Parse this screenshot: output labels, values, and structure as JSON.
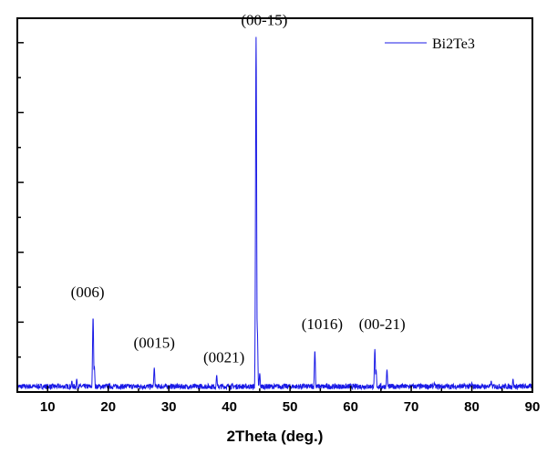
{
  "chart_data": {
    "type": "line",
    "title": "",
    "xlabel": "2Theta (deg.)",
    "ylabel": "",
    "xlim": [
      5,
      90
    ],
    "ylim": [
      0,
      1
    ],
    "xticks": [
      "10",
      "20",
      "30",
      "40",
      "50",
      "60",
      "70",
      "80",
      "90"
    ],
    "y_ticks_labeled": false,
    "grid": false,
    "legend_position": "top-right",
    "series": [
      {
        "name": "Bi2Te3",
        "color": "#1a1ae6",
        "baseline": 0.012,
        "noise": 0.014,
        "peaks": [
          {
            "x": 14.0,
            "y": 0.03
          },
          {
            "x": 14.8,
            "y": 0.035
          },
          {
            "x": 17.5,
            "y": 0.2
          },
          {
            "x": 17.7,
            "y": 0.07
          },
          {
            "x": 27.6,
            "y": 0.065
          },
          {
            "x": 37.9,
            "y": 0.045
          },
          {
            "x": 44.4,
            "y": 0.95
          },
          {
            "x": 44.6,
            "y": 0.17
          },
          {
            "x": 45.0,
            "y": 0.05
          },
          {
            "x": 54.1,
            "y": 0.11
          },
          {
            "x": 64.0,
            "y": 0.115
          },
          {
            "x": 64.2,
            "y": 0.06
          },
          {
            "x": 66.0,
            "y": 0.06
          },
          {
            "x": 73.8,
            "y": 0.025
          },
          {
            "x": 80.0,
            "y": 0.025
          },
          {
            "x": 83.2,
            "y": 0.03
          },
          {
            "x": 86.8,
            "y": 0.035
          }
        ]
      }
    ],
    "annotations": [
      {
        "text": "(006)",
        "x": 17.5,
        "y": 0.2
      },
      {
        "text": "(0015)",
        "x": 27.6,
        "y": 0.065
      },
      {
        "text": "(0021)",
        "x": 37.9,
        "y": 0.045
      },
      {
        "text": "(00-15)",
        "x": 44.4,
        "y": 0.95
      },
      {
        "text": "(1016)",
        "x": 54.1,
        "y": 0.11
      },
      {
        "text": "(00-21)",
        "x": 64.0,
        "y": 0.115
      }
    ]
  }
}
